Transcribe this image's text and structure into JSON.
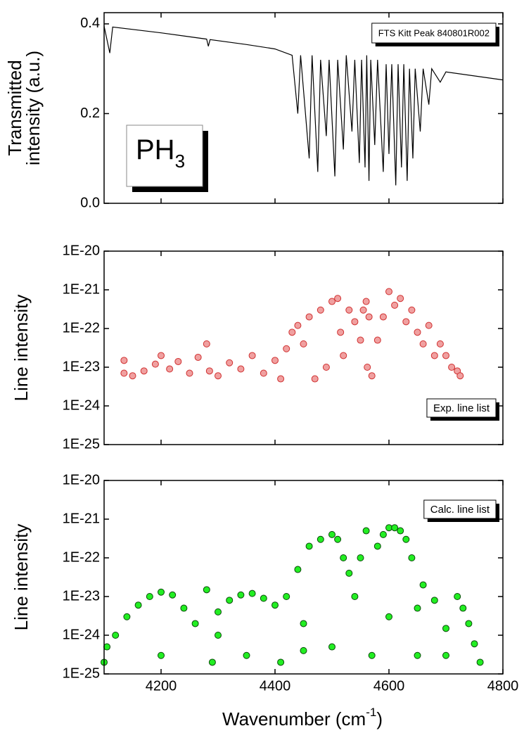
{
  "chart_data": [
    {
      "type": "line",
      "ylabel": [
        "Transmitted",
        "intensity (a.u.)"
      ],
      "annotation": {
        "text": "PH",
        "subscript": "3"
      },
      "xlim": [
        4100,
        4800
      ],
      "xticks": [
        4200,
        4400,
        4600,
        4800
      ],
      "show_xtick_labels": false,
      "ylim": [
        0,
        0.425
      ],
      "yticks": [
        {
          "value": 0,
          "label": "0.0"
        },
        0.2,
        0.4
      ],
      "legend": "upper right",
      "x": [
        4100,
        4110,
        4115,
        4200,
        4280,
        4283,
        4286,
        4350,
        4400,
        4430,
        4440,
        4445,
        4460,
        4465,
        4475,
        4480,
        4490,
        4495,
        4505,
        4510,
        4520,
        4525,
        4535,
        4540,
        4548,
        4552,
        4558,
        4561,
        4565,
        4568,
        4575,
        4580,
        4590,
        4595,
        4600,
        4605,
        4612,
        4616,
        4622,
        4626,
        4632,
        4636,
        4642,
        4646,
        4655,
        4660,
        4670,
        4675,
        4690,
        4700,
        4800
      ],
      "series": [
        {
          "name": "FTS Kitt Peak 840801R002",
          "color": "#000000",
          "values": [
            0.395,
            0.335,
            0.393,
            0.38,
            0.366,
            0.35,
            0.365,
            0.354,
            0.344,
            0.33,
            0.2,
            0.33,
            0.1,
            0.33,
            0.07,
            0.32,
            0.15,
            0.32,
            0.06,
            0.32,
            0.12,
            0.33,
            0.16,
            0.32,
            0.09,
            0.32,
            0.08,
            0.33,
            0.05,
            0.32,
            0.13,
            0.32,
            0.07,
            0.31,
            0.11,
            0.31,
            0.04,
            0.31,
            0.08,
            0.31,
            0.05,
            0.3,
            0.1,
            0.3,
            0.16,
            0.3,
            0.22,
            0.3,
            0.27,
            0.293,
            0.275
          ]
        }
      ]
    },
    {
      "type": "scatter",
      "log_y": true,
      "ylabel": [
        "Line intensity"
      ],
      "xlim": [
        4100,
        4800
      ],
      "xticks": [
        4200,
        4400,
        4600,
        4800
      ],
      "show_xtick_labels": false,
      "ylim": [
        1e-25,
        1e-20
      ],
      "yticks": [
        {
          "value": 1e-25,
          "label": "1E-25"
        },
        {
          "value": 1e-24,
          "label": "1E-24"
        },
        {
          "value": 1e-23,
          "label": "1E-23"
        },
        {
          "value": 1e-22,
          "label": "1E-22"
        },
        {
          "value": 1e-21,
          "label": "1E-21"
        },
        {
          "value": 1e-20,
          "label": "1E-20"
        }
      ],
      "legend": "lower right",
      "x": [
        4135,
        4135,
        4150,
        4170,
        4190,
        4200,
        4215,
        4230,
        4250,
        4265,
        4280,
        4285,
        4300,
        4320,
        4340,
        4360,
        4380,
        4400,
        4410,
        4420,
        4430,
        4440,
        4450,
        4460,
        4470,
        4480,
        4490,
        4500,
        4510,
        4515,
        4520,
        4530,
        4540,
        4550,
        4555,
        4560,
        4562,
        4565,
        4570,
        4580,
        4590,
        4600,
        4610,
        4620,
        4630,
        4640,
        4650,
        4660,
        4670,
        4680,
        4690,
        4700,
        4710,
        4720,
        4725
      ],
      "series": [
        {
          "name": "Exp. line list",
          "color": "#f0a0a0",
          "edge_color": "#d03030",
          "values": [
            1.5e-23,
            7e-24,
            6e-24,
            8e-24,
            1.2e-23,
            2e-23,
            9e-24,
            1.4e-23,
            7e-24,
            1.8e-23,
            4e-23,
            8e-24,
            6e-24,
            1.3e-23,
            9e-24,
            2e-23,
            7e-24,
            1.5e-23,
            5e-24,
            3e-23,
            8e-23,
            1.2e-22,
            4e-23,
            2e-22,
            5e-24,
            3e-22,
            1e-23,
            5e-22,
            6e-22,
            8e-23,
            2e-23,
            3e-22,
            1.5e-22,
            5e-23,
            3e-22,
            5e-22,
            1e-23,
            2e-22,
            6e-24,
            5e-23,
            2e-22,
            9e-22,
            4e-22,
            6e-22,
            1.5e-22,
            3e-22,
            8e-23,
            4e-23,
            1.2e-22,
            2e-23,
            4e-23,
            2e-23,
            1e-23,
            8e-24,
            6e-24
          ]
        }
      ]
    },
    {
      "type": "scatter",
      "log_y": true,
      "ylabel": [
        "Line intensity"
      ],
      "xlabel": {
        "text": "Wavenumber (cm",
        "superscript": "-1",
        "suffix": ")"
      },
      "xlim": [
        4100,
        4800
      ],
      "xticks": [
        4200,
        4400,
        4600,
        4800
      ],
      "show_xtick_labels": true,
      "ylim": [
        1e-25,
        1e-20
      ],
      "yticks": [
        {
          "value": 1e-25,
          "label": "1E-25"
        },
        {
          "value": 1e-24,
          "label": "1E-24"
        },
        {
          "value": 1e-23,
          "label": "1E-23"
        },
        {
          "value": 1e-22,
          "label": "1E-22"
        },
        {
          "value": 1e-21,
          "label": "1E-21"
        },
        {
          "value": 1e-20,
          "label": "1E-20"
        }
      ],
      "legend": "upper right",
      "x": [
        4100,
        4105,
        4120,
        4140,
        4160,
        4180,
        4200,
        4220,
        4240,
        4260,
        4280,
        4290,
        4300,
        4320,
        4340,
        4360,
        4380,
        4400,
        4410,
        4420,
        4440,
        4460,
        4480,
        4500,
        4510,
        4520,
        4530,
        4540,
        4550,
        4560,
        4570,
        4580,
        4590,
        4600,
        4610,
        4620,
        4630,
        4640,
        4660,
        4680,
        4700,
        4720,
        4730,
        4740,
        4750,
        4760,
        4200,
        4350,
        4450,
        4500,
        4650,
        4700,
        4300,
        4450,
        4600,
        4650
      ],
      "series": [
        {
          "name": "Calc. line list",
          "color": "#22ee22",
          "edge_color": "#0a4a0a",
          "values": [
            2e-25,
            5e-25,
            1e-24,
            3e-24,
            6e-24,
            1e-23,
            1.3e-23,
            1.1e-23,
            5e-24,
            2e-24,
            1.5e-23,
            2e-25,
            4e-24,
            8e-24,
            1.1e-23,
            1.2e-23,
            9e-24,
            6e-24,
            2e-25,
            1e-23,
            5e-23,
            2e-22,
            3e-22,
            4e-22,
            3e-22,
            1e-22,
            4e-23,
            1e-23,
            1e-22,
            5e-22,
            3e-25,
            2e-22,
            4e-22,
            6e-22,
            6e-22,
            5e-22,
            3e-22,
            1e-22,
            2e-23,
            8e-24,
            1.5e-24,
            1e-23,
            5e-24,
            2e-24,
            6e-25,
            2e-25,
            3e-25,
            3e-25,
            4e-25,
            5e-25,
            3e-25,
            3e-25,
            1e-24,
            2e-24,
            3e-24,
            5e-24
          ]
        }
      ]
    }
  ]
}
